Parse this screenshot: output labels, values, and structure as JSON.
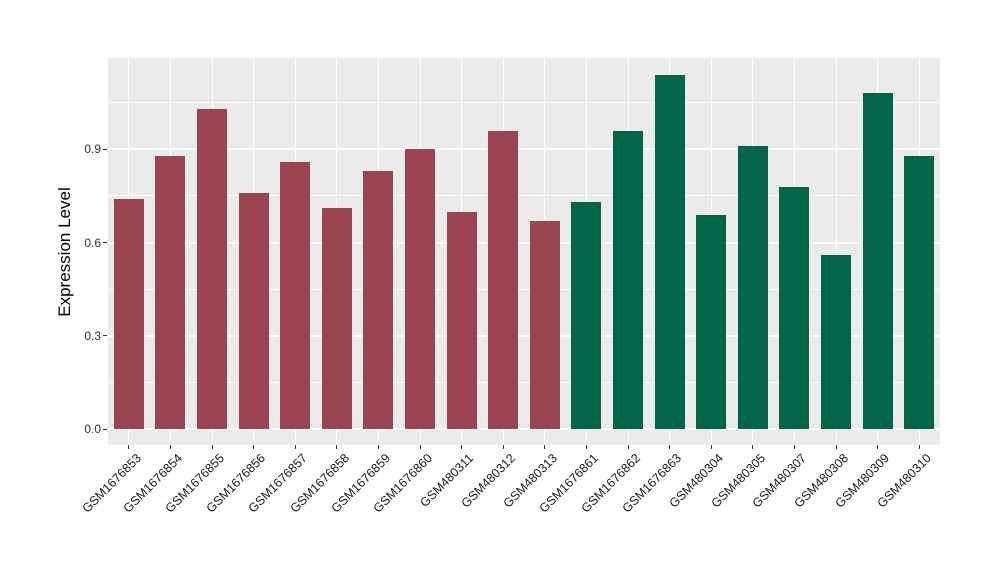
{
  "chart_data": {
    "type": "bar",
    "title": "",
    "xlabel": "",
    "ylabel": "Expression Level",
    "ylim": [
      -0.05,
      1.2
    ],
    "yticks": [
      0.0,
      0.3,
      0.6,
      0.9
    ],
    "ytick_labels": [
      "0.0",
      "0.3",
      "0.6",
      "0.9"
    ],
    "grid": "on",
    "legend": "none",
    "panel_bg": "#EBEBEB",
    "grid_color": "#FFFFFF",
    "tick_text_color": "#333333",
    "categories": [
      "GSM1676853",
      "GSM1676854",
      "GSM1676855",
      "GSM1676856",
      "GSM1676857",
      "GSM1676858",
      "GSM1676859",
      "GSM1676860",
      "GSM480311",
      "GSM480312",
      "GSM480313",
      "GSM1676861",
      "GSM1676862",
      "GSM1676863",
      "GSM480304",
      "GSM480305",
      "GSM480307",
      "GSM480308",
      "GSM480309",
      "GSM480310"
    ],
    "values": [
      0.74,
      0.88,
      1.03,
      0.76,
      0.86,
      0.71,
      0.83,
      0.9,
      0.7,
      0.96,
      0.67,
      0.73,
      0.96,
      1.14,
      0.69,
      0.91,
      0.78,
      0.56,
      1.08,
      0.88
    ],
    "bar_groups": [
      "maroon",
      "maroon",
      "maroon",
      "maroon",
      "maroon",
      "maroon",
      "maroon",
      "maroon",
      "maroon",
      "maroon",
      "maroon",
      "green",
      "green",
      "green",
      "green",
      "green",
      "green",
      "green",
      "green",
      "green"
    ],
    "group_colors": {
      "maroon": "#9B4451",
      "green": "#016647"
    }
  }
}
